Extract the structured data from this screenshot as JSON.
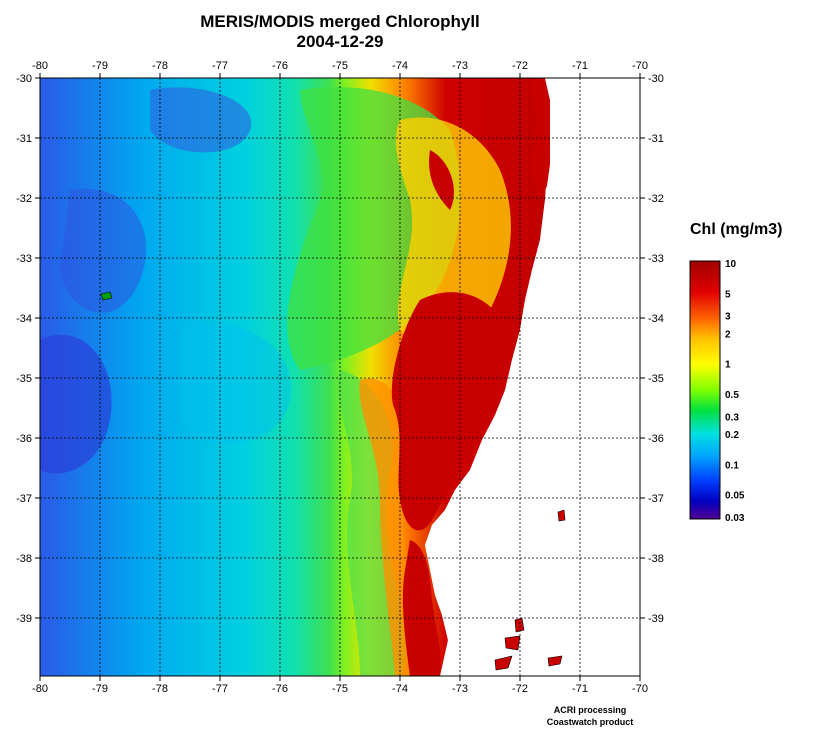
{
  "title": "MERIS/MODIS merged Chlorophyll",
  "date": "2004-12-29",
  "legend": {
    "title": "Chl (mg/m3)",
    "labels": [
      "10",
      "5",
      "3",
      "2",
      "1",
      "0.5",
      "0.3",
      "0.2",
      "0.1",
      "0.05",
      "0.03"
    ],
    "colors": [
      "#a00000",
      "#e00000",
      "#ff6000",
      "#ffc000",
      "#ffff00",
      "#80ff00",
      "#00e040",
      "#00e0e0",
      "#00a0ff",
      "#0040ff",
      "#0000c0",
      "#500090"
    ]
  },
  "axes": {
    "lon_ticks": [
      "-80",
      "-79",
      "-78",
      "-77",
      "-76",
      "-75",
      "-74",
      "-73",
      "-72",
      "-71",
      "-70"
    ],
    "lat_ticks": [
      "-30",
      "-31",
      "-32",
      "-33",
      "-34",
      "-35",
      "-36",
      "-37",
      "-38",
      "-39"
    ]
  },
  "credits": {
    "line1": "ACRI processing",
    "line2": "Coastwatch product"
  },
  "palette": {
    "ocean_low": "#2050e0",
    "ocean_mid": "#00c8f0",
    "green": "#40d840",
    "yellow": "#f0e000",
    "orange": "#ff8000",
    "red": "#c80000",
    "land": "#ffffff",
    "grid": "#000000"
  }
}
